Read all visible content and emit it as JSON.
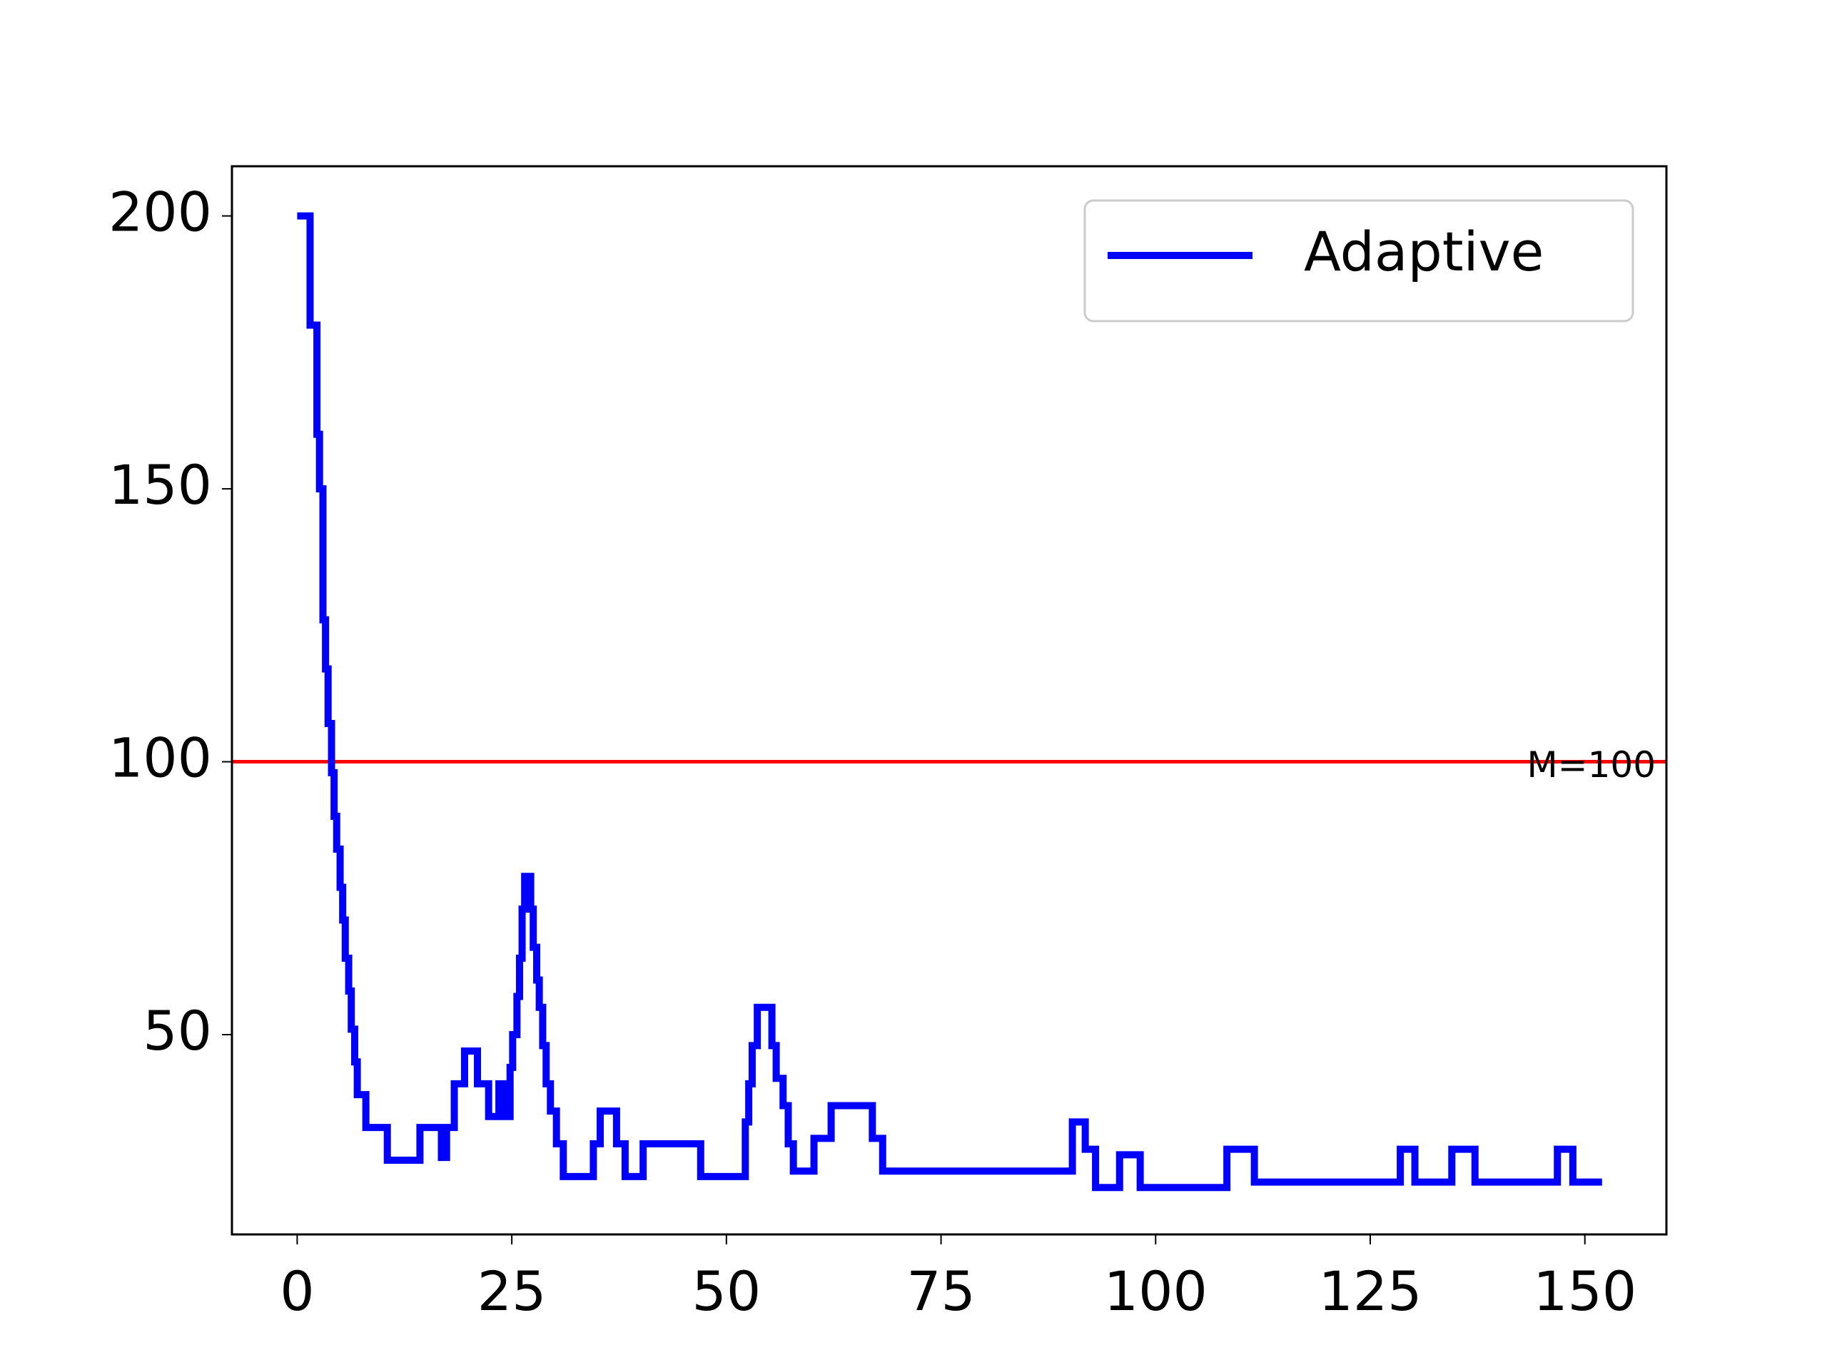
{
  "chart_data": {
    "type": "line",
    "drawstyle": "steps-post",
    "x": [
      0,
      1.5,
      2.3,
      2.6,
      3.0,
      3.3,
      3.6,
      4.0,
      4.3,
      4.6,
      5.0,
      5.3,
      5.6,
      6.0,
      6.3,
      6.7,
      7.0,
      8,
      10.5,
      14.3,
      16.8,
      17.4,
      18.3,
      19.5,
      21,
      22.3,
      23.5,
      24.3,
      24.8,
      25.1,
      25.6,
      25.9,
      26.2,
      26.5,
      27.2,
      27.5,
      27.9,
      28.2,
      28.6,
      29,
      29.5,
      30.2,
      31,
      34.5,
      35.3,
      37.2,
      38.2,
      40.3,
      47,
      52.2,
      52.6,
      53,
      53.6,
      55.3,
      55.8,
      56.6,
      57.2,
      57.8,
      60.2,
      62.2,
      67,
      68.2,
      90.3,
      91.8,
      93,
      95.8,
      98.2,
      108.3,
      111.5,
      128.5,
      130.2,
      134.5,
      137.2,
      146.8,
      148.6,
      152
    ],
    "series": [
      {
        "name": "Adaptive",
        "color": "blue",
        "values": [
          200,
          180,
          160,
          150,
          126,
          117,
          107,
          98,
          90,
          84,
          77,
          71,
          64,
          58,
          51,
          45,
          39,
          33,
          27,
          33,
          27.5,
          33,
          41,
          47,
          41,
          35,
          41,
          35,
          44,
          50,
          57,
          64,
          73,
          79,
          73,
          66,
          60,
          55,
          48,
          41,
          36,
          30,
          24,
          30,
          36,
          30,
          24,
          30,
          24,
          34,
          41,
          48,
          55,
          48,
          42,
          37,
          30,
          25,
          31,
          37,
          31,
          25,
          34,
          29,
          22,
          28,
          22,
          29,
          23,
          29,
          23,
          29,
          23,
          29,
          23,
          23
        ]
      }
    ],
    "hlines": [
      {
        "y": 100,
        "color": "red",
        "label": "M=100"
      }
    ],
    "xlim": [
      -7.6,
      159.5
    ],
    "ylim": [
      13.4,
      209.1
    ],
    "xticks": [
      0,
      25,
      50,
      75,
      100,
      125,
      150
    ],
    "yticks": [
      50,
      100,
      150,
      200
    ],
    "legend": "upper right",
    "grid": false
  }
}
